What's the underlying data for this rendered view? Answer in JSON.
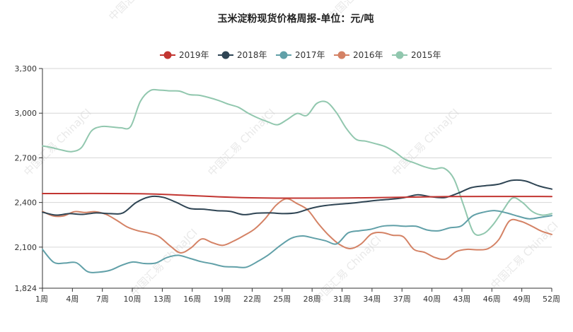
{
  "chart_data": {
    "type": "line",
    "title": "玉米淀粉现货价格周报-单位：元/吨",
    "xlabel": "",
    "ylabel": "",
    "ylim": [
      1824,
      3300
    ],
    "y_ticks": [
      1824,
      2100,
      2400,
      2700,
      3000,
      3300
    ],
    "y_tick_labels": [
      "1,824",
      "2,100",
      "2,400",
      "2,700",
      "3,000",
      "3,300"
    ],
    "x_range": [
      1,
      52
    ],
    "x_ticks": [
      1,
      4,
      7,
      10,
      13,
      16,
      19,
      22,
      25,
      28,
      31,
      34,
      37,
      40,
      43,
      46,
      49,
      52
    ],
    "x_tick_labels": [
      "1周",
      "4周",
      "7周",
      "10周",
      "13周",
      "16周",
      "19周",
      "22周",
      "25周",
      "28周",
      "31周",
      "34周",
      "37周",
      "40周",
      "43周",
      "46周",
      "49周",
      "52周"
    ],
    "grid": "horizontal",
    "legend_position": "top-center",
    "watermark": "中国汇易 ChinaJCI",
    "series": [
      {
        "name": "2019年",
        "color": "#c23531",
        "values": [
          2460,
          2458,
          2432,
          2430,
          2440,
          2440
        ]
      },
      {
        "name": "2018年",
        "color": "#2f4554",
        "values": [
          2335,
          2315,
          2325,
          2320,
          2330,
          2325,
          2330,
          2400,
          2438,
          2435,
          2400,
          2360,
          2355,
          2345,
          2340,
          2318,
          2328,
          2330,
          2325,
          2332,
          2360,
          2378,
          2388,
          2395,
          2405,
          2415,
          2422,
          2433,
          2452,
          2438,
          2433,
          2462,
          2500,
          2512,
          2522,
          2548,
          2545,
          2512,
          2490
        ]
      },
      {
        "name": "2017年",
        "color": "#61a0a8",
        "values": [
          2085,
          1998,
          1993,
          1995,
          1935,
          1932,
          1945,
          1978,
          2000,
          1990,
          1993,
          2030,
          2045,
          2025,
          2003,
          1988,
          1970,
          1967,
          1965,
          2003,
          2050,
          2110,
          2160,
          2175,
          2160,
          2143,
          2122,
          2195,
          2210,
          2220,
          2240,
          2245,
          2240,
          2240,
          2215,
          2210,
          2230,
          2242,
          2310,
          2335,
          2345,
          2330,
          2308,
          2290,
          2300,
          2312
        ]
      },
      {
        "name": "2016年",
        "color": "#d48265",
        "values": [
          2340,
          2310,
          2310,
          2338,
          2333,
          2338,
          2320,
          2280,
          2235,
          2210,
          2195,
          2170,
          2110,
          2062,
          2095,
          2155,
          2130,
          2112,
          2140,
          2178,
          2222,
          2292,
          2380,
          2425,
          2392,
          2350,
          2258,
          2178,
          2118,
          2090,
          2120,
          2188,
          2198,
          2180,
          2170,
          2085,
          2065,
          2030,
          2020,
          2070,
          2085,
          2082,
          2090,
          2150,
          2275,
          2275,
          2245,
          2208,
          2185
        ]
      },
      {
        "name": "2015年",
        "color": "#91c7ae",
        "values": [
          2780,
          2768,
          2752,
          2742,
          2770,
          2880,
          2910,
          2908,
          2902,
          2910,
          3080,
          3152,
          3155,
          3150,
          3148,
          3125,
          3120,
          3105,
          3085,
          3060,
          3040,
          3000,
          2968,
          2942,
          2922,
          2958,
          2998,
          2985,
          3065,
          3075,
          3005,
          2900,
          2825,
          2812,
          2795,
          2775,
          2738,
          2690,
          2665,
          2640,
          2625,
          2630,
          2560,
          2380,
          2200,
          2190,
          2250,
          2345,
          2430,
          2400,
          2340,
          2315,
          2325
        ]
      }
    ]
  }
}
